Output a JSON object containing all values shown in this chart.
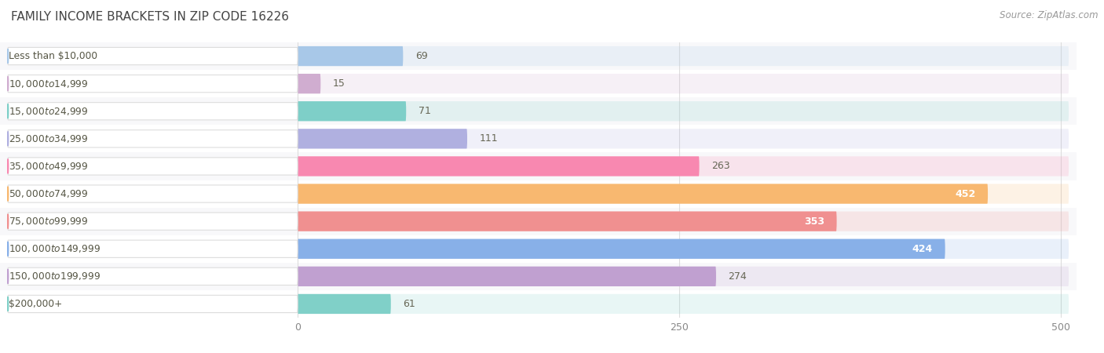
{
  "title": "FAMILY INCOME BRACKETS IN ZIP CODE 16226",
  "source": "Source: ZipAtlas.com",
  "categories": [
    "Less than $10,000",
    "$10,000 to $14,999",
    "$15,000 to $24,999",
    "$25,000 to $34,999",
    "$35,000 to $49,999",
    "$50,000 to $74,999",
    "$75,000 to $99,999",
    "$100,000 to $149,999",
    "$150,000 to $199,999",
    "$200,000+"
  ],
  "values": [
    69,
    15,
    71,
    111,
    263,
    452,
    353,
    424,
    274,
    61
  ],
  "bar_colors": [
    "#a8c8e8",
    "#d0add0",
    "#7ecfc8",
    "#b0b0e0",
    "#f888b0",
    "#f8b870",
    "#f09090",
    "#88b0e8",
    "#c0a0d0",
    "#80d0c8"
  ],
  "xlim": [
    0,
    510
  ],
  "xticks": [
    0,
    250,
    500
  ],
  "background_color": "#ffffff",
  "row_bg_colors": [
    "#f8f8fa",
    "#ffffff"
  ],
  "value_label_inside": [
    false,
    false,
    false,
    false,
    false,
    true,
    true,
    true,
    false,
    false
  ],
  "label_text_color": "#555544",
  "title_color": "#444444",
  "source_color": "#999999"
}
